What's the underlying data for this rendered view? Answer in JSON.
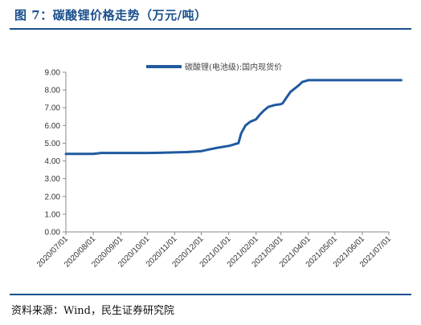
{
  "header": {
    "title": "图 7：碳酸锂价格走势（万元/吨）"
  },
  "footer": {
    "source": "资料来源：Wind，民生证券研究院"
  },
  "colors": {
    "accent": "#1b4f8c",
    "series": "#1f5aa0"
  },
  "chart_data": {
    "type": "line",
    "title": "",
    "xlabel": "",
    "ylabel": "",
    "ylim": [
      0,
      9
    ],
    "yticks": [
      "0.00",
      "1.00",
      "2.00",
      "3.00",
      "4.00",
      "5.00",
      "6.00",
      "7.00",
      "8.00",
      "9.00"
    ],
    "xticks": [
      "2020/07/01",
      "2020/08/01",
      "2020/09/01",
      "2020/10/01",
      "2020/11/01",
      "2020/12/01",
      "2021/01/01",
      "2021/02/01",
      "2021/03/01",
      "2021/04/01",
      "2021/05/01",
      "2021/06/01",
      "2021/07/01"
    ],
    "grid": false,
    "legend": "top-center",
    "series": [
      {
        "name": "碳酸锂(电池级):国内现货价",
        "x": [
          "2020/07/01",
          "2020/07/20",
          "2020/08/01",
          "2020/08/10",
          "2020/09/01",
          "2020/10/01",
          "2020/10/15",
          "2020/11/01",
          "2020/11/15",
          "2020/12/01",
          "2020/12/10",
          "2020/12/20",
          "2021/01/01",
          "2021/01/05",
          "2021/01/08",
          "2021/01/12",
          "2021/01/15",
          "2021/01/20",
          "2021/01/25",
          "2021/02/01",
          "2021/02/05",
          "2021/02/10",
          "2021/02/15",
          "2021/02/22",
          "2021/03/01",
          "2021/03/03",
          "2021/03/07",
          "2021/03/12",
          "2021/03/17",
          "2021/03/22",
          "2021/03/25",
          "2021/04/01",
          "2021/05/01",
          "2021/06/01",
          "2021/07/01",
          "2021/07/15"
        ],
        "values": [
          4.4,
          4.4,
          4.4,
          4.45,
          4.45,
          4.45,
          4.46,
          4.48,
          4.5,
          4.55,
          4.65,
          4.75,
          4.85,
          4.9,
          4.95,
          5.0,
          5.55,
          6.0,
          6.2,
          6.35,
          6.6,
          6.85,
          7.05,
          7.15,
          7.2,
          7.25,
          7.55,
          7.9,
          8.1,
          8.3,
          8.45,
          8.55,
          8.55,
          8.55,
          8.55,
          8.55
        ]
      }
    ]
  }
}
